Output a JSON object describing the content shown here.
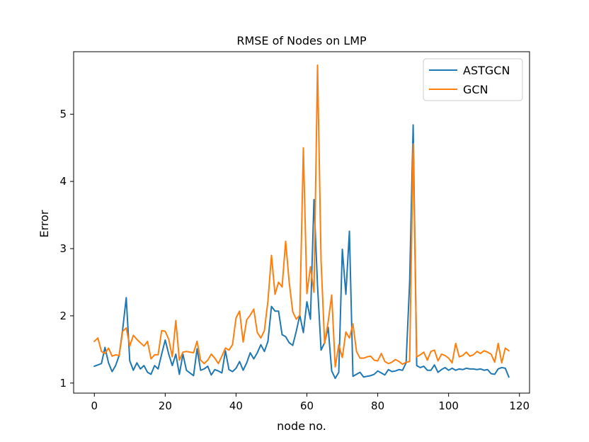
{
  "chart_data": {
    "type": "line",
    "title": "RMSE of Nodes on LMP",
    "xlabel": "node no.",
    "ylabel": "Error",
    "xlim": [
      -5.85,
      122.85
    ],
    "ylim": [
      0.85,
      5.93
    ],
    "xticks": [
      0,
      20,
      40,
      60,
      80,
      100,
      120
    ],
    "yticks": [
      1,
      2,
      3,
      4,
      5
    ],
    "grid": false,
    "legend_position": "upper-right",
    "x": [
      0,
      1,
      2,
      3,
      4,
      5,
      6,
      7,
      8,
      9,
      10,
      11,
      12,
      13,
      14,
      15,
      16,
      17,
      18,
      19,
      20,
      21,
      22,
      23,
      24,
      25,
      26,
      27,
      28,
      29,
      30,
      31,
      32,
      33,
      34,
      35,
      36,
      37,
      38,
      39,
      40,
      41,
      42,
      43,
      44,
      45,
      46,
      47,
      48,
      49,
      50,
      51,
      52,
      53,
      54,
      55,
      56,
      57,
      58,
      59,
      60,
      61,
      62,
      63,
      64,
      65,
      66,
      67,
      68,
      69,
      70,
      71,
      72,
      73,
      74,
      75,
      76,
      77,
      78,
      79,
      80,
      81,
      82,
      83,
      84,
      85,
      86,
      87,
      88,
      89,
      90,
      91,
      92,
      93,
      94,
      95,
      96,
      97,
      98,
      99,
      100,
      101,
      102,
      103,
      104,
      105,
      106,
      107,
      108,
      109,
      110,
      111,
      112,
      113,
      114,
      115,
      116,
      117
    ],
    "series": [
      {
        "name": "ASTGCN",
        "color": "#1f77b4",
        "values": [
          1.25,
          1.27,
          1.29,
          1.53,
          1.3,
          1.17,
          1.26,
          1.41,
          1.8,
          2.27,
          1.33,
          1.19,
          1.3,
          1.21,
          1.26,
          1.16,
          1.13,
          1.26,
          1.21,
          1.43,
          1.64,
          1.43,
          1.26,
          1.43,
          1.13,
          1.43,
          1.19,
          1.15,
          1.11,
          1.51,
          1.19,
          1.21,
          1.25,
          1.12,
          1.2,
          1.18,
          1.15,
          1.48,
          1.2,
          1.17,
          1.22,
          1.32,
          1.19,
          1.3,
          1.45,
          1.36,
          1.45,
          1.57,
          1.47,
          1.62,
          2.14,
          2.07,
          2.07,
          1.72,
          1.69,
          1.6,
          1.56,
          1.77,
          2.01,
          1.75,
          2.21,
          1.95,
          3.73,
          2.45,
          1.49,
          1.6,
          1.83,
          1.18,
          1.07,
          1.16,
          2.99,
          2.32,
          3.26,
          1.1,
          1.13,
          1.16,
          1.09,
          1.1,
          1.11,
          1.13,
          1.18,
          1.15,
          1.12,
          1.2,
          1.17,
          1.18,
          1.2,
          1.19,
          1.3,
          2.5,
          4.84,
          1.26,
          1.23,
          1.25,
          1.19,
          1.19,
          1.27,
          1.16,
          1.2,
          1.23,
          1.19,
          1.22,
          1.19,
          1.21,
          1.2,
          1.22,
          1.21,
          1.21,
          1.2,
          1.21,
          1.19,
          1.2,
          1.14,
          1.13,
          1.21,
          1.23,
          1.22,
          1.09
        ]
      },
      {
        "name": "GCN",
        "color": "#ff7f0e",
        "values": [
          1.62,
          1.67,
          1.47,
          1.44,
          1.52,
          1.4,
          1.42,
          1.41,
          1.77,
          1.82,
          1.55,
          1.71,
          1.65,
          1.6,
          1.55,
          1.62,
          1.36,
          1.42,
          1.42,
          1.78,
          1.77,
          1.65,
          1.39,
          1.93,
          1.34,
          1.46,
          1.47,
          1.46,
          1.45,
          1.62,
          1.34,
          1.29,
          1.34,
          1.43,
          1.37,
          1.29,
          1.4,
          1.52,
          1.49,
          1.57,
          1.97,
          2.07,
          1.61,
          1.94,
          2.01,
          2.1,
          1.75,
          1.67,
          1.78,
          2.22,
          2.9,
          2.32,
          2.5,
          2.43,
          3.11,
          2.5,
          2.06,
          1.95,
          2.01,
          4.5,
          2.33,
          2.73,
          2.35,
          5.73,
          2.82,
          1.59,
          1.91,
          2.31,
          1.24,
          1.57,
          1.38,
          1.76,
          1.67,
          1.88,
          1.47,
          1.37,
          1.37,
          1.39,
          1.4,
          1.34,
          1.33,
          1.44,
          1.32,
          1.29,
          1.31,
          1.35,
          1.32,
          1.28,
          1.31,
          1.32,
          4.56,
          1.39,
          1.42,
          1.46,
          1.34,
          1.47,
          1.49,
          1.33,
          1.43,
          1.41,
          1.37,
          1.3,
          1.59,
          1.39,
          1.41,
          1.46,
          1.4,
          1.42,
          1.47,
          1.44,
          1.48,
          1.46,
          1.43,
          1.31,
          1.59,
          1.3,
          1.52,
          1.48
        ]
      }
    ]
  }
}
